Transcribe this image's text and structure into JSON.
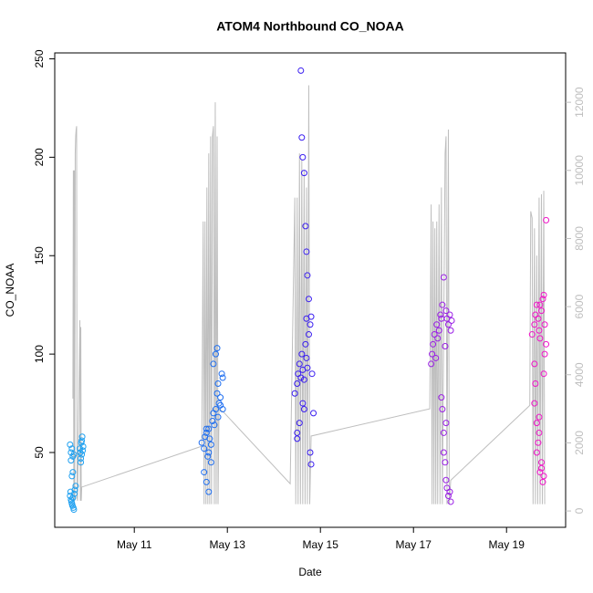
{
  "chart_data": {
    "type": "scatter",
    "title": "ATOM4 Northbound CO_NOAA",
    "x_label": "Date",
    "y_label": "CO_NOAA",
    "xlim": [
      9.29,
      20.27
    ],
    "ylim": [
      12,
      253
    ],
    "y2lim": [
      -480,
      13450
    ],
    "xticks": [
      {
        "value": 11,
        "label": "May 11"
      },
      {
        "value": 13,
        "label": "May 13"
      },
      {
        "value": 15,
        "label": "May 15"
      },
      {
        "value": 17,
        "label": "May 17"
      },
      {
        "value": 19,
        "label": "May 19"
      }
    ],
    "yticks": [
      50,
      100,
      150,
      200,
      250
    ],
    "y2ticks": [
      0,
      2000,
      4000,
      6000,
      8000,
      10000,
      12000
    ],
    "y2_tick_color": "#bebebe",
    "series": [
      {
        "type": "line",
        "axis": "y2",
        "color": "#bebebe",
        "x": [
          9.68,
          9.69,
          9.7,
          9.71,
          9.72,
          9.73,
          9.74,
          9.75,
          9.76,
          9.77,
          9.78,
          9.83,
          9.84,
          9.85,
          9.86,
          9.87,
          12.45,
          12.48,
          12.5,
          12.52,
          12.54,
          12.56,
          12.58,
          12.6,
          12.62,
          12.64,
          12.66,
          12.68,
          12.7,
          12.72,
          12.74,
          12.76,
          12.78,
          12.8,
          12.82,
          12.92,
          14.35,
          14.45,
          14.47,
          14.5,
          14.52,
          14.55,
          14.57,
          14.6,
          14.62,
          14.65,
          14.67,
          14.7,
          14.72,
          14.75,
          14.77,
          14.8,
          17.35,
          17.38,
          17.4,
          17.42,
          17.44,
          17.46,
          17.48,
          17.5,
          17.52,
          17.55,
          17.57,
          17.6,
          17.62,
          17.68,
          17.7,
          17.72,
          17.75,
          17.77,
          17.8,
          19.5,
          19.52,
          19.55,
          19.57,
          19.6,
          19.62,
          19.65,
          19.67,
          19.7,
          19.72,
          19.75,
          19.77,
          19.8,
          19.82
        ],
        "values": [
          3300,
          10000,
          300,
          10000,
          300,
          10500,
          11000,
          11200,
          11300,
          400,
          300,
          5600,
          300,
          5400,
          300,
          700,
          1900,
          8500,
          200,
          8500,
          200,
          9500,
          200,
          10500,
          200,
          11000,
          200,
          11000,
          11300,
          200,
          12000,
          200,
          11000,
          200,
          3000,
          2900,
          800,
          9200,
          200,
          9200,
          200,
          10500,
          200,
          10300,
          200,
          10000,
          200,
          9500,
          200,
          12500,
          200,
          2200,
          3000,
          9000,
          200,
          8500,
          200,
          8300,
          200,
          8500,
          200,
          9000,
          200,
          9500,
          200,
          10500,
          11000,
          200,
          11200,
          200,
          900,
          3100,
          8800,
          8600,
          200,
          8300,
          200,
          7500,
          200,
          9200,
          200,
          9300,
          200,
          9400,
          200
        ]
      },
      {
        "color": "#1ea0f0",
        "x": [
          9.62,
          9.63,
          9.64,
          9.65,
          9.66,
          9.67,
          9.68,
          9.69,
          9.7,
          9.71,
          9.72,
          9.64,
          9.66,
          9.68,
          9.7,
          9.62,
          9.64,
          9.83,
          9.84,
          9.85,
          9.86,
          9.87,
          9.88,
          9.89,
          9.9,
          9.85,
          9.87,
          9.66,
          9.68,
          9.74
        ],
        "values": [
          28,
          30,
          26,
          25,
          24,
          23,
          27,
          22,
          21,
          29,
          31,
          50,
          52,
          48,
          49,
          54,
          46,
          52,
          50,
          47,
          55,
          49,
          58,
          51,
          53,
          45,
          56,
          38,
          40,
          33
        ]
      },
      {
        "color": "#1e6ef0",
        "x": [
          12.45,
          12.5,
          12.52,
          12.55,
          12.58,
          12.6,
          12.62,
          12.65,
          12.68,
          12.7,
          12.72,
          12.75,
          12.78,
          12.8,
          12.82,
          12.85,
          12.88,
          12.9,
          12.5,
          12.55,
          12.6,
          12.65,
          12.7,
          12.75,
          12.78,
          12.8,
          12.85,
          12.9,
          12.55,
          12.6
        ],
        "values": [
          55,
          52,
          58,
          60,
          48,
          62,
          57,
          54,
          66,
          70,
          64,
          72,
          80,
          85,
          75,
          78,
          90,
          72,
          40,
          35,
          30,
          45,
          95,
          100,
          103,
          68,
          74,
          88,
          62,
          50
        ]
      },
      {
        "color": "#3a1ef0",
        "x": [
          14.45,
          14.5,
          14.52,
          14.55,
          14.58,
          14.6,
          14.62,
          14.65,
          14.68,
          14.7,
          14.72,
          14.75,
          14.78,
          14.8,
          14.82,
          14.85,
          14.5,
          14.55,
          14.58,
          14.6,
          14.62,
          14.65,
          14.68,
          14.7,
          14.72,
          14.75,
          14.78,
          14.8,
          14.62,
          14.65,
          14.7,
          14.5
        ],
        "values": [
          80,
          85,
          90,
          95,
          88,
          100,
          92,
          87,
          105,
          98,
          93,
          110,
          115,
          119,
          90,
          70,
          60,
          65,
          244,
          210,
          200,
          192,
          165,
          152,
          140,
          128,
          50,
          44,
          75,
          72,
          118,
          57
        ]
      },
      {
        "color": "#9a1ee6",
        "x": [
          17.38,
          17.4,
          17.42,
          17.45,
          17.48,
          17.5,
          17.52,
          17.55,
          17.58,
          17.6,
          17.62,
          17.65,
          17.68,
          17.7,
          17.72,
          17.75,
          17.78,
          17.8,
          17.82,
          17.65,
          17.68,
          17.7,
          17.72,
          17.75,
          17.78,
          17.8,
          17.6,
          17.62,
          17.65,
          17.7
        ],
        "values": [
          95,
          100,
          105,
          110,
          98,
          115,
          108,
          112,
          120,
          118,
          125,
          139,
          104,
          122,
          118,
          115,
          120,
          112,
          117,
          50,
          45,
          36,
          32,
          28,
          30,
          25,
          78,
          72,
          60,
          65
        ]
      },
      {
        "color": "#f014c8",
        "x": [
          19.55,
          19.6,
          19.62,
          19.65,
          19.68,
          19.7,
          19.72,
          19.75,
          19.78,
          19.8,
          19.82,
          19.85,
          19.6,
          19.62,
          19.65,
          19.68,
          19.7,
          19.72,
          19.75,
          19.78,
          19.8,
          19.82,
          19.6,
          19.65,
          19.7,
          19.75,
          19.8,
          19.85,
          19.72
        ],
        "values": [
          110,
          115,
          120,
          125,
          118,
          112,
          108,
          122,
          128,
          130,
          115,
          105,
          95,
          85,
          65,
          55,
          60,
          40,
          45,
          35,
          90,
          100,
          75,
          50,
          68,
          42,
          38,
          168,
          125
        ]
      }
    ]
  }
}
